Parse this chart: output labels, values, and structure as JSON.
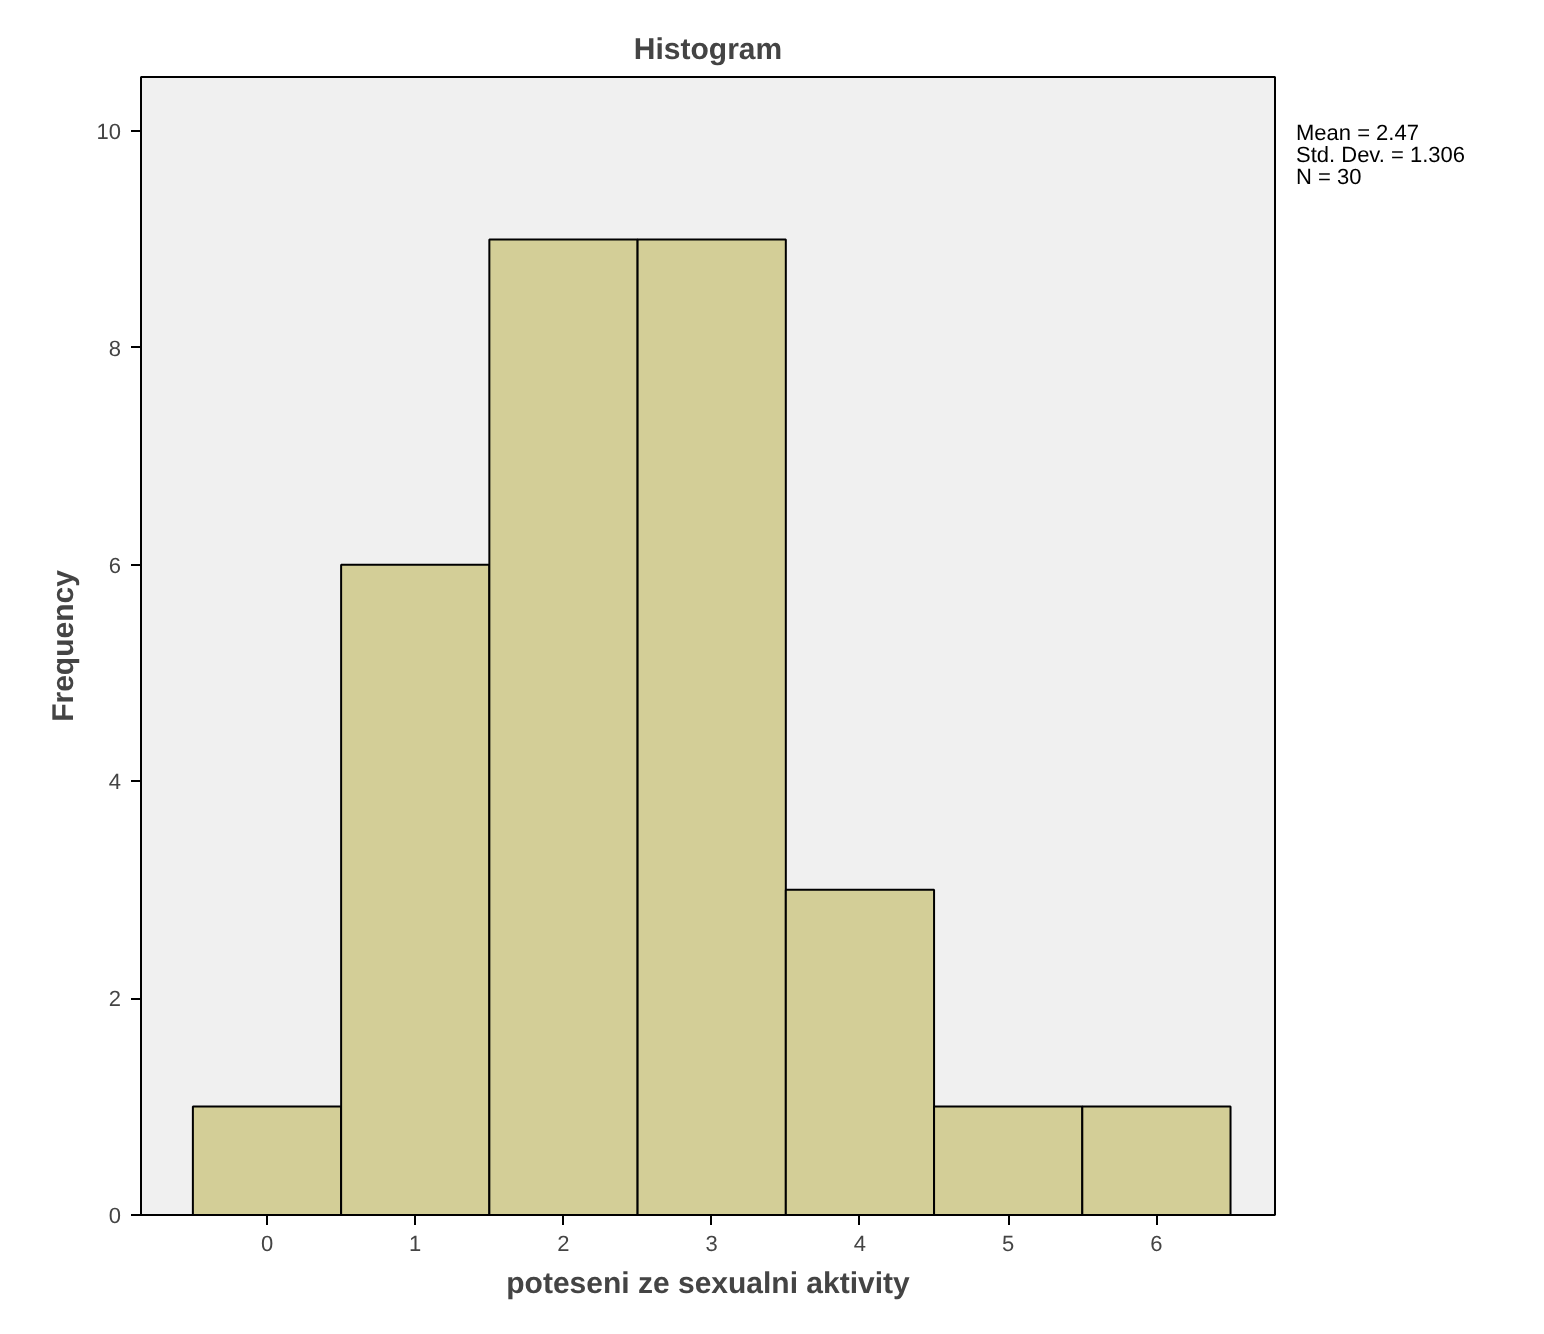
{
  "chart_data": {
    "type": "histogram",
    "title": "Histogram",
    "xlabel": "poteseni ze sexualni aktivity",
    "ylabel": "Frequency",
    "bins": [
      -0.5,
      0.5,
      1.5,
      2.5,
      3.5,
      4.5,
      5.5,
      6.5
    ],
    "values": [
      1,
      6,
      9,
      9,
      3,
      1,
      1
    ],
    "color": "#d3ce97",
    "xlim": [
      -0.85,
      6.8
    ],
    "ylim": [
      0,
      10.5
    ],
    "xticks": [
      0,
      1,
      2,
      3,
      4,
      5,
      6
    ],
    "yticks": [
      0,
      2,
      4,
      6,
      8,
      10
    ],
    "annotations": [
      "Mean = 2.47",
      "Std. Dev. = 1.306",
      "N = 30"
    ]
  }
}
